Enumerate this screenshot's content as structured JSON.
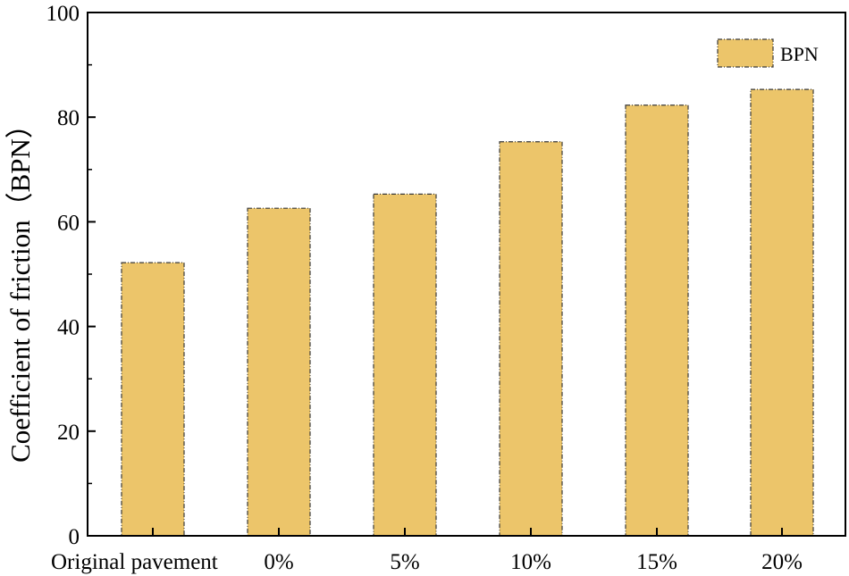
{
  "chart_data": {
    "type": "bar",
    "categories": [
      "Original pavement",
      "0%",
      "5%",
      "10%",
      "15%",
      "20%"
    ],
    "series": [
      {
        "name": "BPN",
        "values": [
          52.2,
          62.6,
          65.3,
          75.3,
          82.3,
          85.3
        ]
      }
    ],
    "ylabel": "Coefficient of friction（BPN）",
    "xlabel": "",
    "ylim": [
      0,
      100
    ],
    "yticks": [
      "0",
      "20",
      "40",
      "60",
      "80",
      "100"
    ],
    "grid": false,
    "legend_position": "top-right",
    "colors": {
      "bar_fill": "#ecc56a",
      "bar_stroke": "#3a3a3a",
      "axis": "#000000"
    }
  }
}
